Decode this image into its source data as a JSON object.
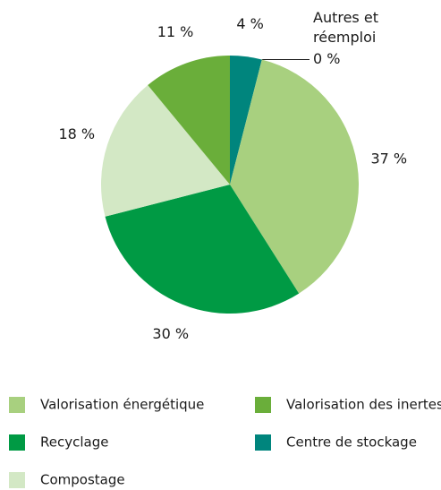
{
  "chart_data": {
    "type": "pie",
    "categories": [
      "Centre de stockage",
      "Autres et réemploi",
      "Valorisation énergétique",
      "Recyclage",
      "Compostage",
      "Valorisation des inertes"
    ],
    "values": [
      4,
      0,
      37,
      30,
      18,
      11
    ],
    "value_labels": [
      "4 %",
      "0 %",
      "37 %",
      "30 %",
      "18 %",
      "11 %"
    ],
    "colors": [
      "#00857d",
      null,
      "#a8d07f",
      "#009a44",
      "#d3e8c5",
      "#6aae3a"
    ]
  }
}
